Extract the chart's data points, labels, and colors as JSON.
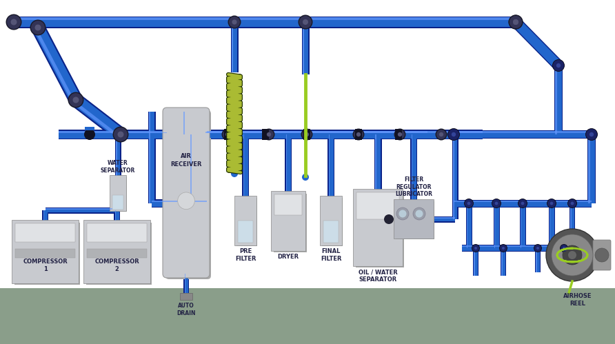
{
  "bg_color": "#ffffff",
  "floor_color": "#8a9e8a",
  "pipe_main": "#2266cc",
  "pipe_dark": "#0a2288",
  "pipe_light": "#6699ff",
  "pipe_highlight": "#99bbff",
  "fitting_dark": "#1a1a2a",
  "fitting_mid": "#333355",
  "equipment_fill": "#c8cacf",
  "equipment_light": "#e0e2e5",
  "equipment_dark": "#9a9ca0",
  "vessel_fill": "#c8cacf",
  "coil_green": "#aabb33",
  "coil_black": "#223300",
  "green_hose": "#99cc22",
  "right_pipe": "#2266cc",
  "right_pipe_dark": "#0a2288",
  "right_pipe_light": "#6699ff",
  "label_color": "#222244",
  "labels": {
    "compressor1": "COMPRESSOR\n1",
    "compressor2": "COMPRESSOR\n2",
    "water_sep": "WATER\nSEPARATOR",
    "air_receiver": "AIR\nRECEIVER",
    "pre_filter": "PRE\nFILTER",
    "dryer": "DRYER",
    "final_filter": "FINAL\nFILTER",
    "oil_water_sep": "OIL / WATER\nSEPARATOR",
    "auto_drain": "AUTO\nDRAIN",
    "filter_reg_lub": "FILTER\nREGULATOR\nLUBRICATOR",
    "airhose_reel": "AIRHOSE\nREEL"
  }
}
